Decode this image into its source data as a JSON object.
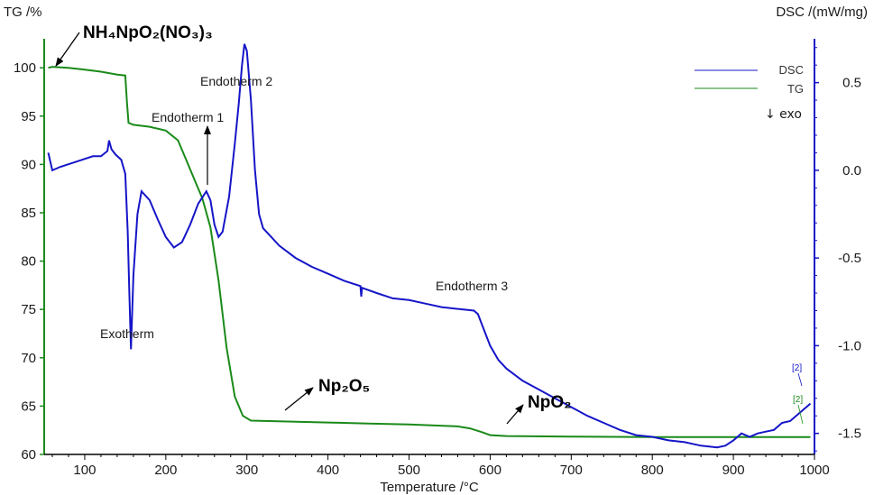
{
  "chart_data": {
    "type": "line",
    "xlabel": "Temperature /°C",
    "y_left_label": "TG /%",
    "y_right_label": "DSC /(mW/mg)",
    "xlim": [
      50,
      1000
    ],
    "ylim_left": [
      60,
      103
    ],
    "ylim_right": [
      -1.62,
      0.75
    ],
    "x_ticks": [
      100,
      200,
      300,
      400,
      500,
      600,
      700,
      800,
      900,
      1000
    ],
    "y_left_ticks": [
      60,
      65,
      70,
      75,
      80,
      85,
      90,
      95,
      100
    ],
    "y_right_ticks": [
      -1.5,
      -1.0,
      -0.5,
      0.0,
      0.5
    ],
    "y_right_tick_labels": [
      "-1.5",
      "-1.0",
      "-0.5",
      "0.0",
      "0.5"
    ],
    "legend": {
      "position": "top-right",
      "entries": [
        "DSC",
        "TG"
      ]
    },
    "exo_label": "↓ exo",
    "series": [
      {
        "name": "TG",
        "axis": "left",
        "color": "#1a8a1a",
        "points": [
          [
            55,
            100
          ],
          [
            60,
            100.1
          ],
          [
            80,
            100
          ],
          [
            100,
            99.8
          ],
          [
            120,
            99.6
          ],
          [
            140,
            99.3
          ],
          [
            150,
            99.2
          ],
          [
            152,
            96.5
          ],
          [
            154,
            94.3
          ],
          [
            160,
            94.1
          ],
          [
            180,
            93.9
          ],
          [
            200,
            93.5
          ],
          [
            215,
            92.5
          ],
          [
            225,
            90.5
          ],
          [
            235,
            88.5
          ],
          [
            245,
            86.5
          ],
          [
            255,
            83.5
          ],
          [
            265,
            78
          ],
          [
            275,
            71
          ],
          [
            285,
            66
          ],
          [
            295,
            64
          ],
          [
            305,
            63.5
          ],
          [
            350,
            63.4
          ],
          [
            400,
            63.3
          ],
          [
            450,
            63.2
          ],
          [
            500,
            63.1
          ],
          [
            560,
            62.9
          ],
          [
            575,
            62.7
          ],
          [
            590,
            62.3
          ],
          [
            600,
            62
          ],
          [
            620,
            61.9
          ],
          [
            700,
            61.85
          ],
          [
            800,
            61.8
          ],
          [
            900,
            61.8
          ],
          [
            995,
            61.8
          ]
        ]
      },
      {
        "name": "DSC",
        "axis": "right",
        "color": "#1515c8",
        "points": [
          [
            55,
            0.1
          ],
          [
            60,
            0.0
          ],
          [
            70,
            0.02
          ],
          [
            90,
            0.05
          ],
          [
            110,
            0.08
          ],
          [
            120,
            0.08
          ],
          [
            128,
            0.11
          ],
          [
            130,
            0.17
          ],
          [
            133,
            0.12
          ],
          [
            138,
            0.09
          ],
          [
            145,
            0.06
          ],
          [
            150,
            -0.02
          ],
          [
            153,
            -0.35
          ],
          [
            155,
            -0.7
          ],
          [
            157,
            -1.02
          ],
          [
            160,
            -0.6
          ],
          [
            165,
            -0.25
          ],
          [
            170,
            -0.12
          ],
          [
            180,
            -0.17
          ],
          [
            190,
            -0.28
          ],
          [
            200,
            -0.38
          ],
          [
            210,
            -0.44
          ],
          [
            220,
            -0.41
          ],
          [
            230,
            -0.31
          ],
          [
            240,
            -0.19
          ],
          [
            250,
            -0.12
          ],
          [
            255,
            -0.17
          ],
          [
            260,
            -0.31
          ],
          [
            265,
            -0.38
          ],
          [
            270,
            -0.35
          ],
          [
            278,
            -0.15
          ],
          [
            285,
            0.15
          ],
          [
            290,
            0.38
          ],
          [
            294,
            0.6
          ],
          [
            297,
            0.72
          ],
          [
            300,
            0.68
          ],
          [
            305,
            0.4
          ],
          [
            310,
            0.0
          ],
          [
            315,
            -0.25
          ],
          [
            320,
            -0.33
          ],
          [
            340,
            -0.43
          ],
          [
            360,
            -0.5
          ],
          [
            380,
            -0.55
          ],
          [
            400,
            -0.59
          ],
          [
            420,
            -0.63
          ],
          [
            440,
            -0.66
          ],
          [
            441,
            -0.72
          ],
          [
            442,
            -0.67
          ],
          [
            460,
            -0.7
          ],
          [
            480,
            -0.73
          ],
          [
            500,
            -0.74
          ],
          [
            520,
            -0.76
          ],
          [
            540,
            -0.78
          ],
          [
            560,
            -0.79
          ],
          [
            580,
            -0.8
          ],
          [
            585,
            -0.82
          ],
          [
            590,
            -0.88
          ],
          [
            600,
            -1.0
          ],
          [
            610,
            -1.08
          ],
          [
            620,
            -1.13
          ],
          [
            640,
            -1.2
          ],
          [
            660,
            -1.25
          ],
          [
            680,
            -1.3
          ],
          [
            700,
            -1.35
          ],
          [
            720,
            -1.4
          ],
          [
            740,
            -1.44
          ],
          [
            760,
            -1.48
          ],
          [
            780,
            -1.51
          ],
          [
            800,
            -1.52
          ],
          [
            820,
            -1.54
          ],
          [
            840,
            -1.55
          ],
          [
            860,
            -1.57
          ],
          [
            880,
            -1.58
          ],
          [
            890,
            -1.57
          ],
          [
            900,
            -1.54
          ],
          [
            910,
            -1.5
          ],
          [
            920,
            -1.52
          ],
          [
            930,
            -1.5
          ],
          [
            940,
            -1.49
          ],
          [
            950,
            -1.48
          ],
          [
            960,
            -1.44
          ],
          [
            970,
            -1.43
          ],
          [
            980,
            -1.39
          ],
          [
            990,
            -1.35
          ],
          [
            995,
            -1.33
          ]
        ]
      }
    ],
    "annotations": {
      "start_compound": "NH₄NpO₂(NO₃)₃",
      "np2o5": "Np₂O₅",
      "npo2": "NpO₂",
      "endotherm1": "Endotherm 1",
      "endotherm2": "Endotherm 2",
      "endotherm3": "Endotherm 3",
      "exotherm": "Exotherm",
      "dsc_marker": "[2]",
      "tg_marker": "[2]"
    }
  }
}
